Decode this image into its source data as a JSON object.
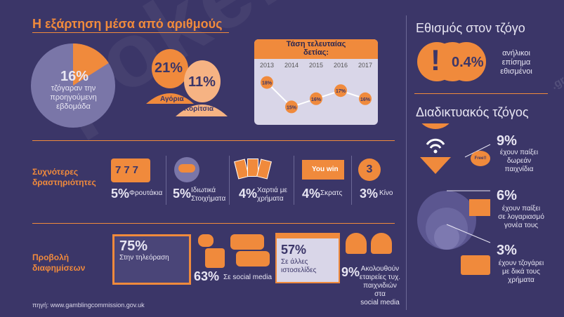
{
  "title": "Η εξάρτηση μέσα από αριθμούς",
  "pie": {
    "pct": "16%",
    "text1": "τζόγαραν την",
    "text2": "προηγούμενη",
    "text3": "εβδομάδα",
    "value": 0.16
  },
  "gender": {
    "boys_pct": "21%",
    "boys_label": "Αγόρια",
    "girls_pct": "11%",
    "girls_label": "Κορίτσια"
  },
  "trend": {
    "title1": "Τάση τελευταίας",
    "title2": "δετίας:",
    "chart_data": {
      "type": "line",
      "x": [
        "2013",
        "2014",
        "2015",
        "2016",
        "2017"
      ],
      "values": [
        18,
        15,
        16,
        17,
        16
      ],
      "labels": [
        "18%",
        "15%",
        "16%",
        "17%",
        "16%"
      ]
    }
  },
  "activities": {
    "label1": "Συχνότερες",
    "label2": "δραστηριότητες",
    "items": [
      {
        "pct": "5%",
        "l1": "Φρουτάκια",
        "l2": ""
      },
      {
        "pct": "5%",
        "l1": "Ιδιωτικά",
        "l2": "Στοιχήματα"
      },
      {
        "pct": "4%",
        "l1": "Χαρτιά με",
        "l2": "χρήματα"
      },
      {
        "pct": "4%",
        "l1": "Σκρατς",
        "l2": ""
      },
      {
        "pct": "3%",
        "l1": "Κίνο",
        "l2": ""
      }
    ],
    "slot_text": "777",
    "scratch_text": "You win",
    "keno_text": "3"
  },
  "ads": {
    "label1": "Προβολή",
    "label2": "διαφημίσεων",
    "tv_pct": "75%",
    "tv_text": "Στην τηλεόραση",
    "social_pct": "63%",
    "social_text": "Σε social media",
    "web_pct": "57%",
    "web_l1": "Σε άλλες",
    "web_l2": "ιστοσελίδες",
    "follow_pct": "9%",
    "follow_l1": "Ακολουθούν",
    "follow_l2": "εταιρείες τυχ.",
    "follow_l3": "παιχνιδιών στα",
    "follow_l4": "social media"
  },
  "source": "πηγή: www.gamblingcommission.gov.uk",
  "habit": {
    "title": "Εθισμός στον τζόγο",
    "pct": "0.4%",
    "l1": "ανήλικοι",
    "l2": "επίσημα",
    "l3": "εθισμένοι",
    "mark": "!"
  },
  "online": {
    "title": "Διαδικτυακός τζόγος",
    "free_badge": "Free!!",
    "items": [
      {
        "pct": "9%",
        "l1": "έχουν παίξει",
        "l2": "δωρεάν",
        "l3": "παιχνίδια"
      },
      {
        "pct": "6%",
        "l1": "έχουν παίξει",
        "l2": "σε λογαριασμό",
        "l3": "γονέα τους"
      },
      {
        "pct": "3%",
        "l1": "έχουν τζογάρει",
        "l2": "με δικά τους",
        "l3": "χρήματα"
      }
    ]
  },
  "watermark": "pokerstars",
  "watermark_side": ".gr",
  "colors": {
    "bg": "#3b3668",
    "accent": "#f08a3c",
    "panel": "#544f85",
    "light": "#e8e6f3"
  }
}
